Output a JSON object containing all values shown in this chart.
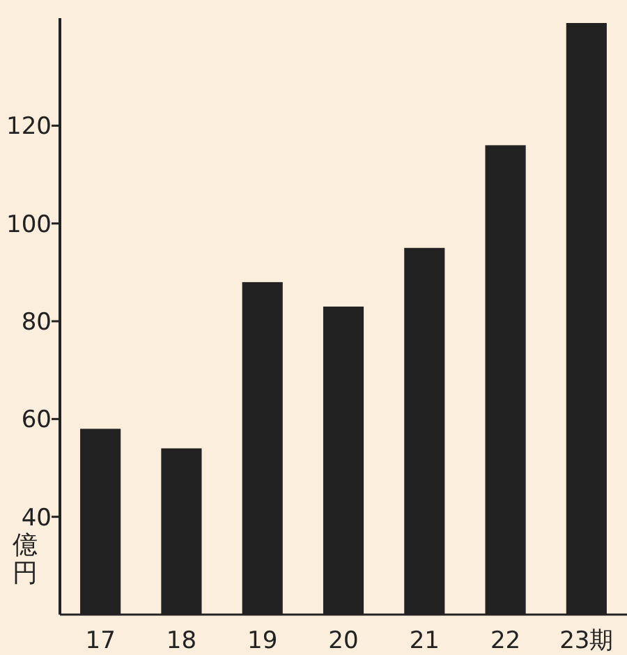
{
  "chart_data": {
    "type": "bar",
    "ylabel": "億円",
    "categories": [
      "17",
      "18",
      "19",
      "20",
      "21",
      "22",
      "23期"
    ],
    "values": [
      58,
      54,
      88,
      83,
      95,
      116,
      141
    ],
    "color": "#222222",
    "ylim": [
      20,
      142
    ],
    "yticks": [
      40,
      60,
      80,
      100,
      120
    ]
  }
}
